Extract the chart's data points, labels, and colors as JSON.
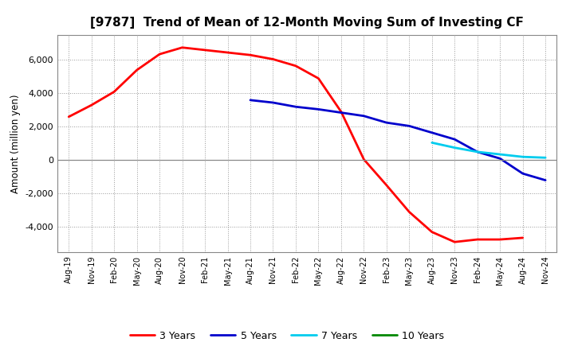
{
  "title": "[9787]  Trend of Mean of 12-Month Moving Sum of Investing CF",
  "ylabel": "Amount (million yen)",
  "background_color": "#ffffff",
  "plot_bg_color": "#ffffff",
  "grid_color": "#999999",
  "ylim": [
    -5500,
    7500
  ],
  "yticks": [
    -4000,
    -2000,
    0,
    2000,
    4000,
    6000
  ],
  "legend_labels": [
    "3 Years",
    "5 Years",
    "7 Years",
    "10 Years"
  ],
  "series": {
    "3y": {
      "color": "#ff0000",
      "linewidth": 2.0,
      "x": [
        "Aug-19",
        "Nov-19",
        "Feb-20",
        "May-20",
        "Aug-20",
        "Nov-20",
        "Feb-21",
        "May-21",
        "Aug-21",
        "Nov-21",
        "Feb-22",
        "May-22",
        "Aug-22",
        "Nov-22",
        "Feb-23",
        "May-23",
        "Aug-23",
        "Nov-23",
        "Feb-24",
        "May-24",
        "Aug-24"
      ],
      "y": [
        2600,
        3300,
        4100,
        5400,
        6350,
        6750,
        6600,
        6450,
        6300,
        6050,
        5650,
        4900,
        2900,
        50,
        -1500,
        -3100,
        -4300,
        -4900,
        -4750,
        -4750,
        -4650
      ]
    },
    "5y": {
      "color": "#0000cc",
      "linewidth": 2.0,
      "x": [
        "Aug-21",
        "Nov-21",
        "Feb-22",
        "May-22",
        "Aug-22",
        "Nov-22",
        "Feb-23",
        "May-23",
        "Aug-23",
        "Nov-23",
        "Feb-24",
        "May-24",
        "Aug-24",
        "Nov-24"
      ],
      "y": [
        3600,
        3450,
        3200,
        3050,
        2850,
        2650,
        2250,
        2050,
        1650,
        1250,
        500,
        100,
        -800,
        -1200
      ]
    },
    "7y": {
      "color": "#00ccee",
      "linewidth": 2.0,
      "x": [
        "Aug-23",
        "Nov-23",
        "Feb-24",
        "May-24",
        "Aug-24",
        "Nov-24"
      ],
      "y": [
        1050,
        750,
        500,
        350,
        200,
        150
      ]
    },
    "10y": {
      "color": "#008800",
      "linewidth": 2.0,
      "x": [
        "Nov-24"
      ],
      "y": [
        100
      ]
    }
  },
  "x_labels": [
    "Aug-19",
    "Nov-19",
    "Feb-20",
    "May-20",
    "Aug-20",
    "Nov-20",
    "Feb-21",
    "May-21",
    "Aug-21",
    "Nov-21",
    "Feb-22",
    "May-22",
    "Aug-22",
    "Nov-22",
    "Feb-23",
    "May-23",
    "Aug-23",
    "Nov-23",
    "Feb-24",
    "May-24",
    "Aug-24",
    "Nov-24"
  ]
}
